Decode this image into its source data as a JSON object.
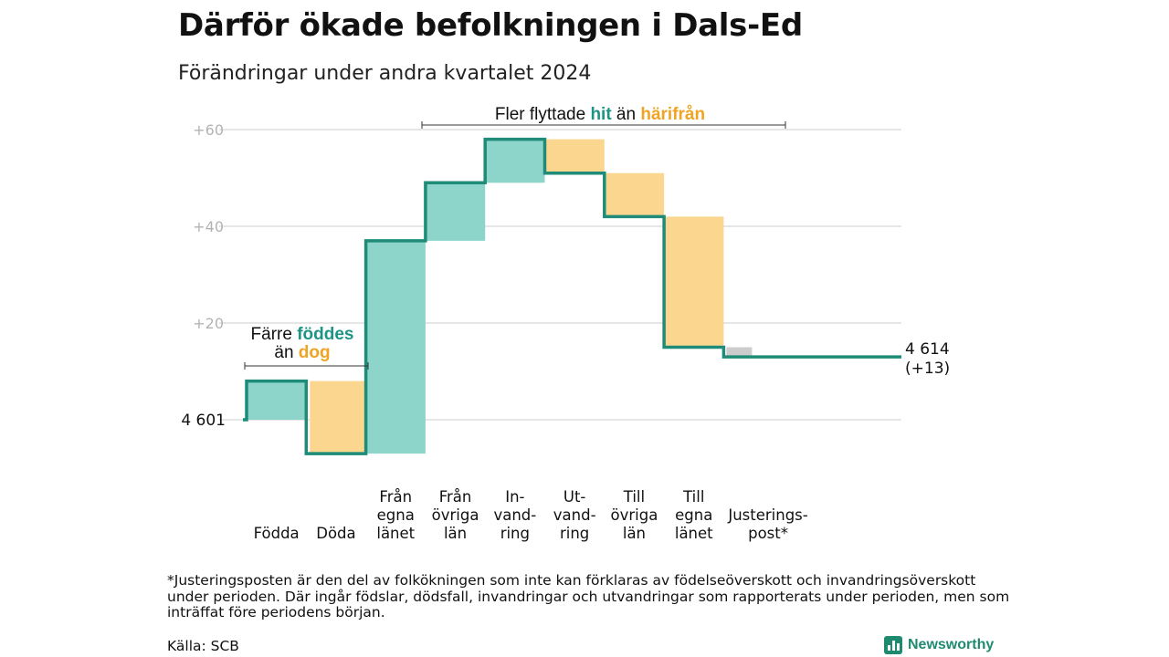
{
  "title": "Därför ökade befolkningen i Dals-Ed",
  "subtitle": "Förändringar under andra kvartalet 2024",
  "colors": {
    "increase": "#8dd5cb",
    "decrease": "#fad68e",
    "adjustment": "#cccccc",
    "line": "#1e8c78",
    "grid": "#dddddd",
    "hit": "#1e9486",
    "harifran": "#f0a424"
  },
  "chart_data": {
    "type": "waterfall",
    "start": {
      "label": "4 601",
      "value": 4601
    },
    "end": {
      "label": "4 614",
      "sublabel": "(+13)",
      "value": 4614
    },
    "yaxis": {
      "ticks": [
        20,
        40,
        60
      ],
      "tick_labels": [
        "+20",
        "+40",
        "+60"
      ],
      "range": [
        -9,
        62
      ]
    },
    "steps": [
      {
        "label": [
          "Födda"
        ],
        "delta": 8,
        "kind": "increase"
      },
      {
        "label": [
          "Döda"
        ],
        "delta": -15,
        "kind": "decrease"
      },
      {
        "label": [
          "Från",
          "egna",
          "länet"
        ],
        "delta": 44,
        "kind": "increase"
      },
      {
        "label": [
          "Från",
          "övriga",
          "län"
        ],
        "delta": 12,
        "kind": "increase"
      },
      {
        "label": [
          "In-",
          "vand-",
          "ring"
        ],
        "delta": 9,
        "kind": "increase"
      },
      {
        "label": [
          "Ut-",
          "vand-",
          "ring"
        ],
        "delta": -7,
        "kind": "decrease"
      },
      {
        "label": [
          "Till",
          "övriga",
          "län"
        ],
        "delta": -9,
        "kind": "decrease"
      },
      {
        "label": [
          "Till",
          "egna",
          "länet"
        ],
        "delta": -27,
        "kind": "decrease"
      },
      {
        "label": [
          "Justerings-",
          "post*"
        ],
        "delta": -2,
        "kind": "adjustment"
      }
    ],
    "annotations": [
      {
        "parts": [
          "Färre ",
          "föddes"
        ],
        "parts2": [
          "än ",
          "dog"
        ]
      },
      {
        "parts": [
          "Fler flyttade ",
          "hit",
          " än ",
          "härifrån"
        ]
      }
    ]
  },
  "footnote": "*Justeringsposten är den del av folkökningen som inte kan förklaras av födelseöverskott och invandringsöverskott under perioden. Där ingår födslar, dödsfall, invandringar och utvandringar som rapporterats under perioden, men som inträffat före periodens början.",
  "source": "Källa: SCB",
  "brand": {
    "name": "Newsworthy",
    "icon": "bar-chart-icon"
  }
}
